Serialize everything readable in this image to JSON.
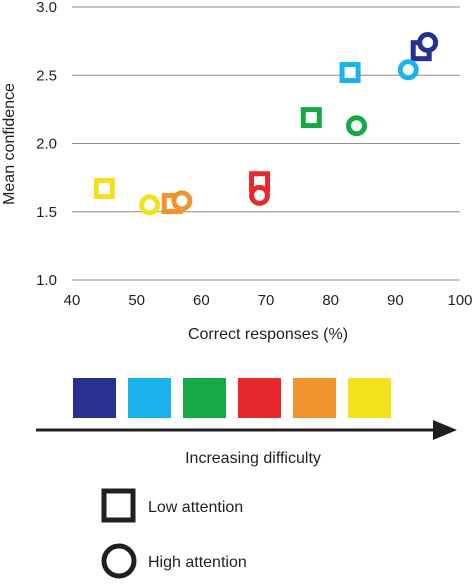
{
  "chart_data": {
    "type": "scatter",
    "xlabel": "Correct responses (%)",
    "ylabel": "Mean confidence",
    "xlim": [
      40,
      100
    ],
    "ylim": [
      1.0,
      3.0
    ],
    "xticks": [
      "40",
      "50",
      "60",
      "70",
      "80",
      "90",
      "100"
    ],
    "yticks": [
      "1.0",
      "1.5",
      "2.0",
      "2.5",
      "3.0"
    ],
    "grid": "horizontal",
    "series": [
      {
        "name": "Low attention",
        "marker": "square",
        "points": [
          {
            "x": 45,
            "y": 1.67,
            "color": "#f3e11b"
          },
          {
            "x": 55.5,
            "y": 1.56,
            "color": "#f0952d"
          },
          {
            "x": 69,
            "y": 1.72,
            "color": "#e8282c"
          },
          {
            "x": 77,
            "y": 2.19,
            "color": "#17a745"
          },
          {
            "x": 83,
            "y": 2.52,
            "color": "#1ab3ec"
          },
          {
            "x": 94,
            "y": 2.68,
            "color": "#25308f"
          }
        ]
      },
      {
        "name": "High attention",
        "marker": "circle",
        "points": [
          {
            "x": 52,
            "y": 1.55,
            "color": "#f3e11b"
          },
          {
            "x": 57,
            "y": 1.58,
            "color": "#f0952d"
          },
          {
            "x": 69,
            "y": 1.62,
            "color": "#e8282c"
          },
          {
            "x": 84,
            "y": 2.13,
            "color": "#17a745"
          },
          {
            "x": 92,
            "y": 2.54,
            "color": "#1ab3ec"
          },
          {
            "x": 95,
            "y": 2.74,
            "color": "#25308f"
          }
        ]
      }
    ]
  },
  "difficulty_scale": {
    "colors": [
      "#25308f",
      "#1ab3ec",
      "#17a745",
      "#e8282c",
      "#f0952d",
      "#f3e11b"
    ],
    "label": "Increasing difficulty"
  },
  "legend": {
    "low_attention": "Low attention",
    "high_attention": "High attention"
  }
}
